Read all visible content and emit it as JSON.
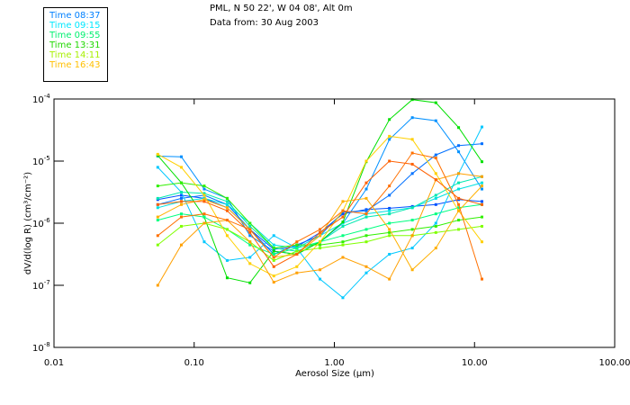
{
  "header": {
    "title": "PML, N 50 22', W 04 08', Alt 0m",
    "subtitle": "Data from: 30 Aug 2003"
  },
  "legend": [
    {
      "label": "Time 08:37",
      "color": "#0080ff"
    },
    {
      "label": "Time 09:15",
      "color": "#00e8ff"
    },
    {
      "label": "Time 09:55",
      "color": "#00f070"
    },
    {
      "label": "Time 13:31",
      "color": "#20d800"
    },
    {
      "label": "Time 14:11",
      "color": "#a8f000"
    },
    {
      "label": "Time 16:43",
      "color": "#ffc000"
    }
  ],
  "chart_data": {
    "type": "line",
    "title": "PML, N 50 22', W 04 08', Alt 0m",
    "xlabel": "Aerosol Size (µm)",
    "ylabel": "dV/d(log R) (cm³/cm⁻²)",
    "xscale": "log",
    "yscale": "log",
    "xlim": [
      0.01,
      100
    ],
    "ylim": [
      1e-08,
      0.0001
    ],
    "x_tick_labels": [
      "0.01",
      "0.10",
      "1.00",
      "10.00",
      "100.00"
    ],
    "x_ticks": [
      0.01,
      0.1,
      1,
      10,
      100
    ],
    "y_ticks": [
      {
        "value": 0.0001,
        "base": "10",
        "exp": "-4"
      },
      {
        "value": 1e-05,
        "base": "10",
        "exp": "-5"
      },
      {
        "value": 1e-06,
        "base": "10",
        "exp": "-6"
      },
      {
        "value": 1e-07,
        "base": "10",
        "exp": "-7"
      },
      {
        "value": 1e-08,
        "base": "10",
        "exp": "-8"
      }
    ],
    "x": [
      0.055,
      0.081,
      0.118,
      0.172,
      0.25,
      0.37,
      0.54,
      0.79,
      1.15,
      1.69,
      2.47,
      3.6,
      5.3,
      7.7,
      11.3
    ],
    "series_note": "values given as log10 of dV/d(log R)",
    "series": [
      {
        "color": "#0050ff",
        "log10_values": [
          -5.62,
          -5.55,
          -5.6,
          -5.75,
          -6.1,
          -6.42,
          -6.38,
          -6.15,
          -5.85,
          -5.78,
          -5.76,
          -5.73,
          -5.7,
          -5.62,
          -5.65
        ]
      },
      {
        "color": "#0090ff",
        "log10_values": [
          -4.92,
          -4.93,
          -5.45,
          -5.6,
          -6.2,
          -6.45,
          -6.5,
          -6.3,
          -6.0,
          -5.45,
          -4.65,
          -4.3,
          -4.35,
          -4.85,
          -5.45
        ]
      },
      {
        "color": "#0070ff",
        "log10_values": [
          -5.7,
          -5.6,
          -5.55,
          -5.7,
          -6.1,
          -6.5,
          -6.35,
          -6.2,
          -5.82,
          -5.8,
          -5.55,
          -5.2,
          -4.9,
          -4.75,
          -4.72
        ]
      },
      {
        "color": "#00c8ff",
        "log10_values": [
          -5.1,
          -5.5,
          -6.3,
          -6.6,
          -6.55,
          -6.2,
          -6.4,
          -6.9,
          -7.2,
          -6.8,
          -6.5,
          -6.4,
          -6.0,
          -5.2,
          -4.45
        ]
      },
      {
        "color": "#00e0e0",
        "log10_values": [
          -5.75,
          -5.65,
          -5.6,
          -5.7,
          -6.0,
          -6.35,
          -6.4,
          -6.2,
          -6.0,
          -5.85,
          -5.8,
          -5.75,
          -5.6,
          -5.45,
          -5.35
        ]
      },
      {
        "color": "#00e8b0",
        "log10_values": [
          -5.6,
          -5.5,
          -5.52,
          -5.65,
          -6.05,
          -6.4,
          -6.45,
          -6.3,
          -6.05,
          -5.9,
          -5.85,
          -5.75,
          -5.55,
          -5.35,
          -5.25
        ]
      },
      {
        "color": "#00e000",
        "log10_values": [
          -4.91,
          -5.35,
          -5.9,
          -6.88,
          -6.96,
          -6.45,
          -6.5,
          -6.3,
          -5.98,
          -5.01,
          -4.33,
          -4.01,
          -4.06,
          -4.46,
          -5.01
        ]
      },
      {
        "color": "#00ff80",
        "log10_values": [
          -5.95,
          -5.85,
          -5.9,
          -6.1,
          -6.35,
          -6.5,
          -6.4,
          -6.3,
          -6.2,
          -6.1,
          -6.0,
          -5.95,
          -5.85,
          -5.75,
          -5.7
        ]
      },
      {
        "color": "#30f000",
        "log10_values": [
          -5.4,
          -5.35,
          -5.4,
          -5.6,
          -6.0,
          -6.4,
          -6.35,
          -6.35,
          -6.3,
          -6.2,
          -6.15,
          -6.1,
          -6.05,
          -5.95,
          -5.9
        ]
      },
      {
        "color": "#80ff00",
        "log10_values": [
          -6.35,
          -6.05,
          -6.0,
          -6.1,
          -6.3,
          -6.6,
          -6.45,
          -6.4,
          -6.35,
          -6.3,
          -6.2,
          -6.2,
          -6.15,
          -6.1,
          -6.05
        ]
      },
      {
        "color": "#ffd000",
        "log10_values": [
          -4.89,
          -5.1,
          -5.55,
          -6.2,
          -6.65,
          -6.85,
          -6.7,
          -6.3,
          -5.8,
          -5.0,
          -4.6,
          -4.65,
          -5.2,
          -5.8,
          -6.3
        ]
      },
      {
        "color": "#ffa000",
        "log10_values": [
          -7.0,
          -6.35,
          -6.0,
          -5.95,
          -6.3,
          -6.95,
          -6.8,
          -6.75,
          -6.55,
          -6.7,
          -6.9,
          -6.2,
          -5.3,
          -5.2,
          -5.25
        ]
      },
      {
        "color": "#ffb000",
        "log10_values": [
          -5.9,
          -5.7,
          -5.62,
          -5.75,
          -6.1,
          -6.55,
          -6.5,
          -6.2,
          -5.65,
          -5.6,
          -6.1,
          -6.75,
          -6.4,
          -5.8,
          -5.4
        ]
      },
      {
        "color": "#ff7000",
        "log10_values": [
          -6.2,
          -5.9,
          -5.85,
          -5.95,
          -6.1,
          -6.55,
          -6.3,
          -6.1,
          -5.8,
          -5.85,
          -5.4,
          -4.87,
          -4.95,
          -5.7,
          -6.9
        ]
      },
      {
        "color": "#ff6000",
        "log10_values": [
          -5.7,
          -5.65,
          -5.65,
          -5.8,
          -6.15,
          -6.7,
          -6.5,
          -6.15,
          -5.9,
          -5.35,
          -5.0,
          -5.05,
          -5.3,
          -5.6,
          -5.7
        ]
      }
    ]
  }
}
